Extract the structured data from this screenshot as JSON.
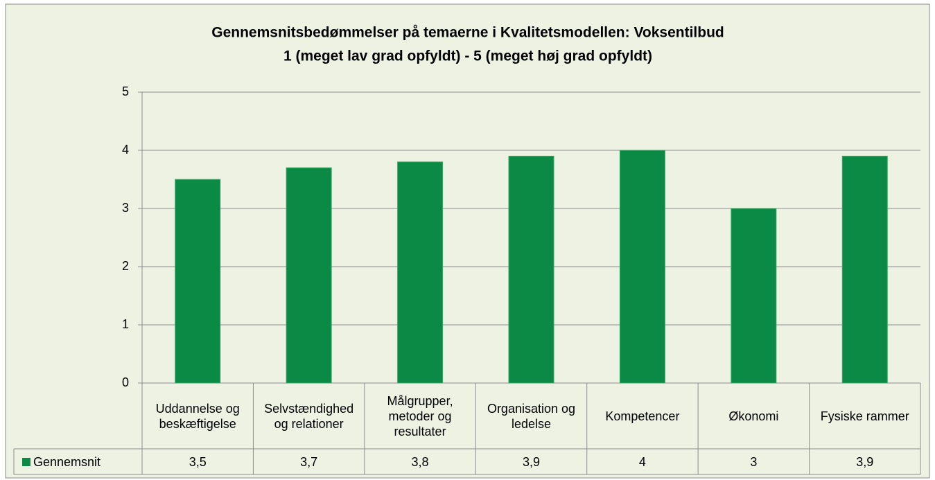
{
  "chart_data": {
    "type": "bar",
    "title": "Gennemsnitsbedømmelser på temaerne i Kvalitetsmodellen: Voksentilbud",
    "subtitle": "1 (meget lav grad opfyldt) - 5 (meget høj grad opfyldt)",
    "categories": [
      "Uddannelse og beskæftigelse",
      "Selvstændighed og relationer",
      "Målgrupper, metoder og resultater",
      "Organisation og ledelse",
      "Kompetencer",
      "Økonomi",
      "Fysiske rammer"
    ],
    "series": [
      {
        "name": "Gennemsnit",
        "color": "#0b8a45",
        "values": [
          3.5,
          3.7,
          3.8,
          3.9,
          4,
          3,
          3.9
        ],
        "value_labels": [
          "3,5",
          "3,7",
          "3,8",
          "3,9",
          "4",
          "3",
          "3,9"
        ]
      }
    ],
    "ylim": [
      0,
      5
    ],
    "yticks": [
      0,
      1,
      2,
      3,
      4,
      5
    ],
    "grid": true,
    "legend": "table"
  }
}
